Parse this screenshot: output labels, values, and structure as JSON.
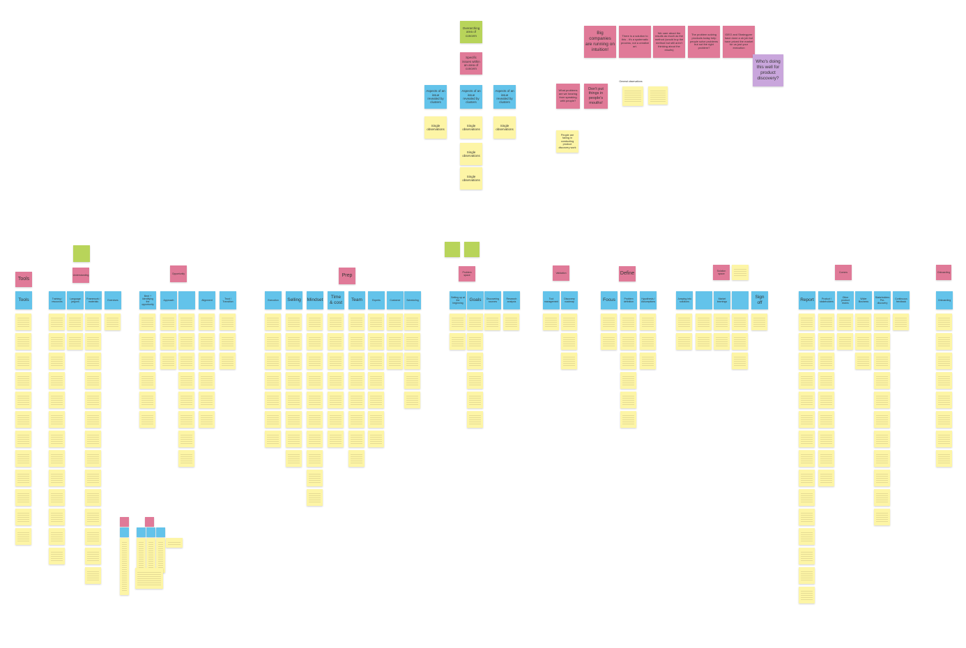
{
  "legend": {
    "area": "Overarching area of concern",
    "issue": "Specific issues within an area of concern",
    "aspects": [
      "Aspects of an issue revealed by clusters",
      "Aspects of an issue revealed by clusters",
      "Aspects of an issue revealed by clusters"
    ],
    "observations": [
      "Single observations",
      "Single observations",
      "Single observations",
      "Single observations",
      "Single observations"
    ]
  },
  "insights": [
    "Big companies are running on intuition!",
    "There is a solution to this - it's a systematic process, not a creative art.",
    "We care about the results as much as the method (would buy the method but still aren't thinking about the results)",
    "The problem solving products today help people solve problems but not the right problem?",
    "IDEO and Strategyzer have done a ok job but have priced the market for us just your execution"
  ],
  "question": "Who's doing this well for product discovery?",
  "hearing": [
    "What problems are we hearing from speaking with people?",
    "Don't put things in people's mouths!"
  ],
  "general_label": "General observations",
  "failing": "People are failing in conducting product discovery work",
  "sections": [
    "Tools",
    "Understanding",
    "Opportunity",
    "Prep",
    "Problem space",
    "Validation",
    "Define",
    "Solution space",
    "Comms",
    "Onboarding"
  ],
  "columns": [
    "Tools",
    "Training / resources",
    "Language jargons",
    "Framework / materials",
    "Exercises",
    "Bent + Identifying the opportunity",
    "Approach",
    "Alignment",
    "Trust / Transition",
    "Execution",
    "Selling",
    "Mindset",
    "Time & cost",
    "Team",
    "Experts",
    "Customer",
    "Scheduling",
    "Setting up at the beginning",
    "Goals",
    "Discovering sources",
    "Research analysis",
    "Tool management",
    "Discovery roadmap",
    "Focus",
    "Problem definition",
    "Hypothesis / Assumptions",
    "Jumping into solutions",
    "Market learnings",
    "Sign off",
    "Report",
    "Product / stakeholders",
    "Other product teams",
    "Wider Business",
    "Stakeholders Pre-discovery",
    "Continuous feedback",
    "Onboarding"
  ]
}
